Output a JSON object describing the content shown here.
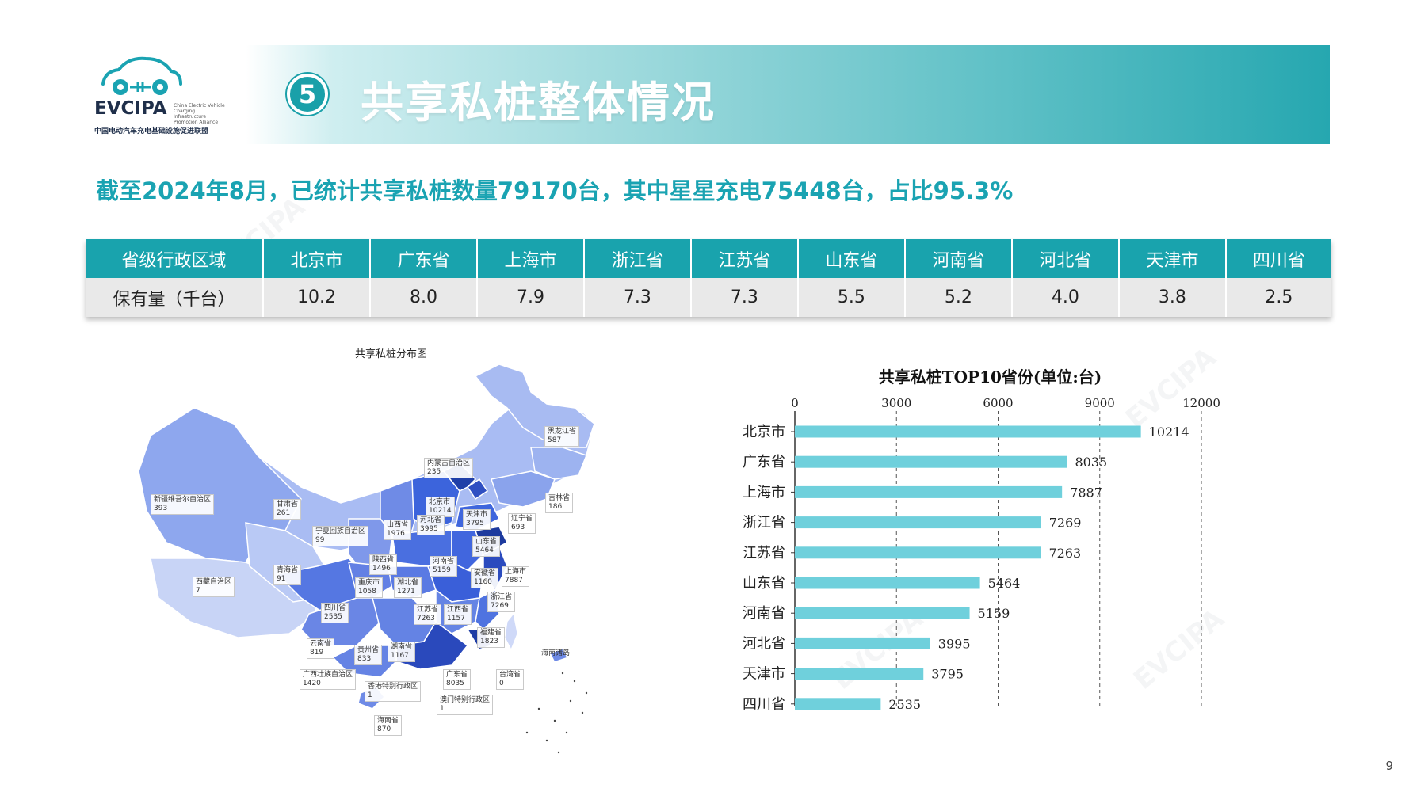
{
  "logo": {
    "text": "EVCIPA",
    "sub": "China Electric Vehicle Charging Infrastructure Promotion Alliance",
    "cn": "中国电动汽车充电基础设施促进联盟"
  },
  "header": {
    "badge": "5",
    "title": "共享私桩整体情况"
  },
  "headline": "截至2024年8月，已统计共享私桩数量79170台，其中星星充电75448台，占比95.3%",
  "table": {
    "row1_label": "省级行政区域",
    "row2_label": "保有量（千台）",
    "provinces": [
      "北京市",
      "广东省",
      "上海市",
      "浙江省",
      "江苏省",
      "山东省",
      "河南省",
      "河北省",
      "天津市",
      "四川省"
    ],
    "values": [
      "10.2",
      "8.0",
      "7.9",
      "7.3",
      "7.3",
      "5.5",
      "5.2",
      "4.0",
      "3.8",
      "2.5"
    ]
  },
  "map": {
    "title": "共享私桩分布图",
    "labels": [
      {
        "name": "黑龙江省",
        "value": "587"
      },
      {
        "name": "内蒙古自治区",
        "value": "235"
      },
      {
        "name": "吉林省",
        "value": "186"
      },
      {
        "name": "新疆维吾尔自治区",
        "value": "393"
      },
      {
        "name": "甘肃省",
        "value": "261"
      },
      {
        "name": "北京市",
        "value": "10214"
      },
      {
        "name": "天津市",
        "value": "3795"
      },
      {
        "name": "辽宁省",
        "value": "693"
      },
      {
        "name": "河北省",
        "value": "3995"
      },
      {
        "name": "山西省",
        "value": "1976"
      },
      {
        "name": "宁夏回族自治区",
        "value": "99"
      },
      {
        "name": "山东省",
        "value": "5464"
      },
      {
        "name": "陕西省",
        "value": "1496"
      },
      {
        "name": "河南省",
        "value": "5159"
      },
      {
        "name": "青海省",
        "value": "91"
      },
      {
        "name": "安徽省",
        "value": "1160"
      },
      {
        "name": "上海市",
        "value": "7887"
      },
      {
        "name": "西藏自治区",
        "value": "7"
      },
      {
        "name": "重庆市",
        "value": "1058"
      },
      {
        "name": "湖北省",
        "value": "1271"
      },
      {
        "name": "浙江省",
        "value": "7269"
      },
      {
        "name": "四川省",
        "value": "2535"
      },
      {
        "name": "江苏省",
        "value": "7263"
      },
      {
        "name": "江西省",
        "value": "1157"
      },
      {
        "name": "福建省",
        "value": "1823"
      },
      {
        "name": "云南省",
        "value": "819"
      },
      {
        "name": "贵州省",
        "value": "833"
      },
      {
        "name": "湖南省",
        "value": "1167"
      },
      {
        "name": "海南诸岛",
        "value": ""
      },
      {
        "name": "广西壮族自治区",
        "value": "1420"
      },
      {
        "name": "广东省",
        "value": "8035"
      },
      {
        "name": "台湾省",
        "value": "0"
      },
      {
        "name": "香港特别行政区",
        "value": "1"
      },
      {
        "name": "澳门特别行政区",
        "value": "1"
      },
      {
        "name": "海南省",
        "value": "870"
      }
    ]
  },
  "chart_data": {
    "type": "bar",
    "orientation": "horizontal",
    "title": "共享私桩TOP10省份(单位:台)",
    "categories": [
      "北京市",
      "广东省",
      "上海市",
      "浙江省",
      "江苏省",
      "山东省",
      "河南省",
      "河北省",
      "天津市",
      "四川省"
    ],
    "values": [
      10214,
      8035,
      7887,
      7269,
      7263,
      5464,
      5159,
      3995,
      3795,
      2535
    ],
    "xlim": [
      0,
      12000
    ],
    "xticks": [
      0,
      3000,
      6000,
      9000,
      12000
    ],
    "grid": "vertical dashed",
    "bar_color": "#6fd0dc"
  },
  "page_number": "9"
}
